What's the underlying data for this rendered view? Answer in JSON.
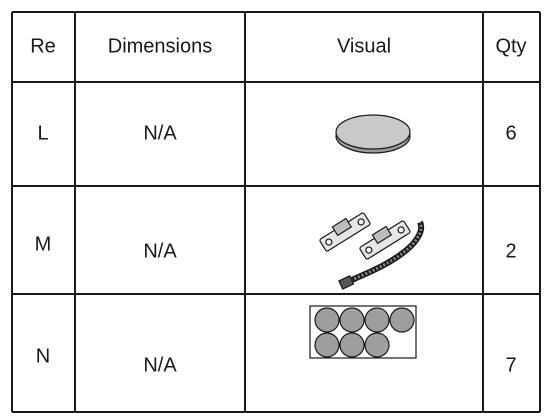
{
  "table": {
    "header": [
      "Re",
      "Dimensions",
      "Visual",
      "Qty"
    ],
    "rows": [
      [
        "L",
        "N/A",
        6
      ],
      [
        "M",
        "N/A",
        2
      ],
      [
        "N",
        "N/A",
        7
      ]
    ]
  }
}
